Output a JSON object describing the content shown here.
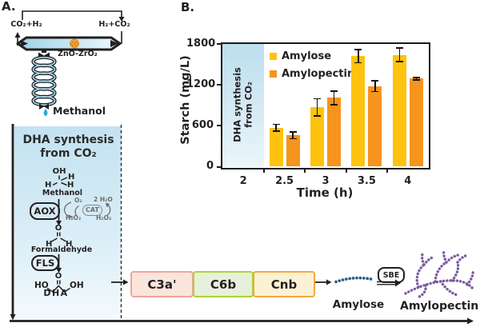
{
  "figure": {
    "panel_a_label": "A.",
    "panel_b_label": "B."
  },
  "reactor": {
    "inlet": "CO₂+H₂",
    "recycle": "H₂+CO₂",
    "catalyst": "ZnO-ZrO₂",
    "product": "Methanol"
  },
  "pathway": {
    "title_line1": "DHA synthesis",
    "title_line2": "from CO₂",
    "methanol": {
      "oh": "OH",
      "h_a": "H",
      "h_b": "H",
      "h_c": "H",
      "name": "Methanol"
    },
    "enzyme_aox": "AOX",
    "enzyme_cat": "CAT",
    "cycle": {
      "o2": "O₂",
      "h2o": "2 H₂O",
      "h2o2_a": "H₂O₂",
      "h2o2_b": "H₂O₂"
    },
    "formaldehyde": {
      "o": "O",
      "h_a": "H",
      "h_b": "H",
      "name": "Formaldehyde"
    },
    "enzyme_fls": "FLS",
    "dha": {
      "o": "O",
      "ho": "HO",
      "oh": "OH",
      "name": "DHA"
    }
  },
  "cassettes": [
    {
      "label": "C3a'",
      "fill": "#FAE5DC",
      "border": "#F2A49B"
    },
    {
      "label": "C6b",
      "fill": "#E7F0DB",
      "border": "#ABD435"
    },
    {
      "label": "Cnb",
      "fill": "#FCF1D5",
      "border": "#F1A93E"
    }
  ],
  "products": {
    "amylose": "Amylose",
    "sbe": "SBE",
    "amylopectin": "Amylopectin"
  },
  "colors": {
    "amylose_chain": "#2A5A86",
    "amylopectin_branch": "#7A58A3",
    "droplet": "#2FA8DF",
    "catalyst_ball": "#F0A43B"
  },
  "chart_data": {
    "type": "bar",
    "title": "",
    "xlabel": "Time (h)",
    "ylabel": "Starch (mg/L)",
    "categories": [
      "2",
      "2.5",
      "3",
      "3.5",
      "4"
    ],
    "ylim": [
      0,
      1800
    ],
    "yticks": [
      0,
      600,
      1200,
      1800
    ],
    "grid": false,
    "legend_position": "upper-left-inside",
    "series": [
      {
        "name": "Amylose",
        "color": "#FFC20E",
        "values": [
          null,
          570,
          870,
          1620,
          1640
        ],
        "errors": [
          null,
          50,
          125,
          95,
          100
        ]
      },
      {
        "name": "Amylopectin",
        "color": "#F7941D",
        "values": [
          null,
          460,
          1010,
          1180,
          1290
        ],
        "errors": [
          null,
          50,
          100,
          80,
          15
        ]
      }
    ],
    "annotation": {
      "region_category": "2",
      "line1": "DHA synthesis",
      "line2": "from CO₂",
      "region_fill_top": "#BCDEEE",
      "region_fill_bottom": "#EBF5FA"
    }
  }
}
